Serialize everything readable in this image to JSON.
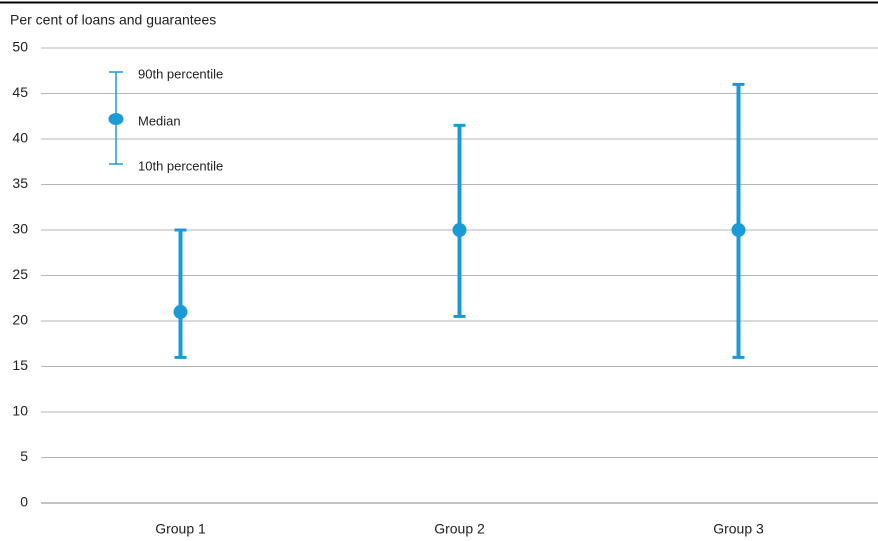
{
  "chart_data": {
    "type": "range",
    "ylabel": "Per cent of loans and guarantees",
    "categories": [
      "Group 1",
      "Group 2",
      "Group 3"
    ],
    "series": [
      {
        "name": "90th percentile",
        "color": "#1a9bd7",
        "values": [
          30,
          41.5,
          46
        ]
      },
      {
        "name": "Median",
        "color": "#1a9bd7",
        "values": [
          21,
          30,
          30
        ]
      },
      {
        "name": "10th percentile",
        "color": "#1a9bd7",
        "values": [
          16,
          20.5,
          16
        ]
      }
    ],
    "ylim": [
      0,
      50
    ],
    "yticks": [
      0,
      5,
      10,
      15,
      20,
      25,
      30,
      35,
      40,
      45,
      50
    ],
    "grid": true,
    "legend": "top-left"
  }
}
